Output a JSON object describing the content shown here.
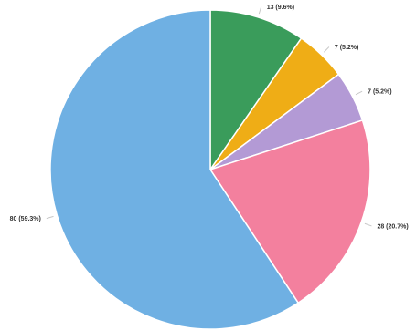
{
  "chart_data": {
    "type": "pie",
    "title": "",
    "slices": [
      {
        "value": 13,
        "label": "13 (9.6%)",
        "color": "#3a9c5b"
      },
      {
        "value": 7,
        "label": "7 (5.2%)",
        "color": "#efad16"
      },
      {
        "value": 7,
        "label": "7 (5.2%)",
        "color": "#b39ad5"
      },
      {
        "value": 28,
        "label": "28 (20.7%)",
        "color": "#f3809e"
      },
      {
        "value": 80,
        "label": "80 (59.3%)",
        "color": "#6fb0e3"
      }
    ],
    "start_angle_deg": 0,
    "direction": "clockwise",
    "legend": "none"
  }
}
